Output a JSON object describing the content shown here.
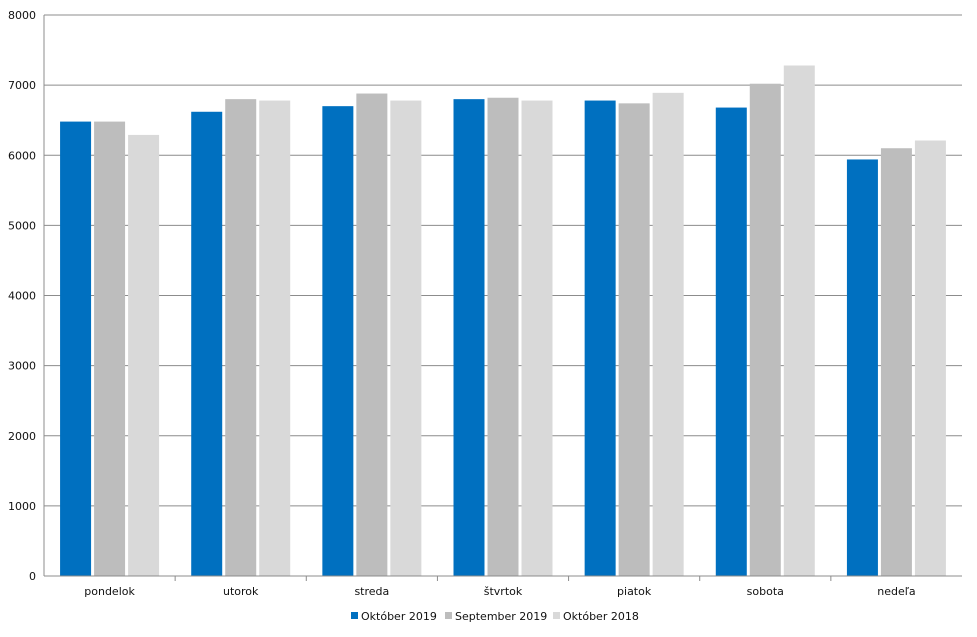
{
  "chart_data": {
    "type": "bar",
    "title": "",
    "xlabel": "",
    "ylabel": "",
    "ylim": [
      0,
      8000
    ],
    "yticks": [
      0,
      1000,
      2000,
      3000,
      4000,
      5000,
      6000,
      7000,
      8000
    ],
    "grid": true,
    "legend_position": "bottom-center",
    "categories": [
      "pondelok",
      "utorok",
      "streda",
      "štvrtok",
      "piatok",
      "sobota",
      "nedeľa"
    ],
    "series": [
      {
        "name": "Október 2019",
        "color": "#0070c0",
        "values": [
          6480,
          6620,
          6700,
          6800,
          6780,
          6680,
          5940
        ]
      },
      {
        "name": "September 2019",
        "color": "#bdbdbd",
        "values": [
          6480,
          6800,
          6880,
          6820,
          6740,
          7020,
          6100
        ]
      },
      {
        "name": "Október 2018",
        "color": "#d9d9d9",
        "values": [
          6290,
          6780,
          6780,
          6780,
          6890,
          7280,
          6210
        ]
      }
    ]
  }
}
